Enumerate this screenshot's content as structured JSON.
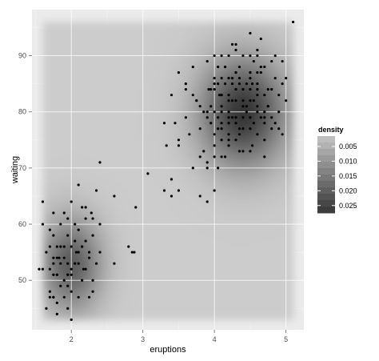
{
  "chart_data": {
    "type": "heatmap",
    "subtype": "2d-density-raster-with-scatter",
    "xlabel": "eruptions",
    "ylabel": "waiting",
    "xlim": [
      1.45,
      5.25
    ],
    "ylim": [
      41.2,
      98.2
    ],
    "x_ticks": [
      2,
      3,
      4,
      5
    ],
    "x_tick_labels": [
      "2",
      "3",
      "4",
      "5"
    ],
    "y_ticks": [
      50,
      60,
      70,
      80,
      90
    ],
    "y_tick_labels": [
      "50",
      "60",
      "70",
      "80",
      "90"
    ],
    "grid": true,
    "density_fill_range": {
      "x": [
        1.6,
        5.1
      ],
      "y": [
        43,
        96
      ]
    },
    "density_modes": [
      {
        "x": 4.4,
        "y": 80,
        "peak": 0.028
      },
      {
        "x": 2.0,
        "y": 53,
        "peak": 0.021
      }
    ],
    "legend": {
      "title": "density",
      "position": "right",
      "labels": [
        "0.005",
        "0.010",
        "0.015",
        "0.020",
        "0.025"
      ],
      "values": [
        0.005,
        0.01,
        0.015,
        0.02,
        0.025
      ]
    },
    "colors": {
      "panel_background": "#ebebeb",
      "grid_major": "#ffffff",
      "grid_minor": "#f5f5f5",
      "density_low": "#cccccc",
      "density_high": "#333333",
      "points": "#000000"
    },
    "points": [
      [
        3.6,
        79
      ],
      [
        1.8,
        54
      ],
      [
        3.33,
        74
      ],
      [
        2.28,
        62
      ],
      [
        4.53,
        85
      ],
      [
        2.88,
        55
      ],
      [
        4.7,
        88
      ],
      [
        3.6,
        85
      ],
      [
        1.95,
        51
      ],
      [
        4.35,
        85
      ],
      [
        1.83,
        54
      ],
      [
        3.92,
        84
      ],
      [
        4.2,
        78
      ],
      [
        1.75,
        47
      ],
      [
        4.7,
        83
      ],
      [
        2.17,
        52
      ],
      [
        1.75,
        62
      ],
      [
        4.8,
        84
      ],
      [
        1.6,
        52
      ],
      [
        4.25,
        79
      ],
      [
        1.8,
        51
      ],
      [
        1.75,
        47
      ],
      [
        3.45,
        78
      ],
      [
        3.07,
        69
      ],
      [
        4.53,
        74
      ],
      [
        4.07,
        83
      ],
      [
        2.07,
        55
      ],
      [
        4.5,
        82
      ],
      [
        3.8,
        81
      ],
      [
        4.5,
        87
      ],
      [
        4.0,
        80
      ],
      [
        3.8,
        77
      ],
      [
        4.2,
        76
      ],
      [
        4.3,
        82
      ],
      [
        4.5,
        86
      ],
      [
        4.6,
        80
      ],
      [
        4.1,
        75
      ],
      [
        4.4,
        82
      ],
      [
        4.1,
        83
      ],
      [
        4.7,
        78
      ],
      [
        4.8,
        79
      ],
      [
        4.1,
        81
      ],
      [
        4.6,
        84
      ],
      [
        4.3,
        79
      ],
      [
        4.4,
        81
      ],
      [
        4.05,
        79
      ],
      [
        4.2,
        86
      ],
      [
        4.65,
        88
      ],
      [
        4.3,
        78
      ],
      [
        4.75,
        81
      ],
      [
        4.25,
        85
      ],
      [
        4.1,
        72
      ],
      [
        4.5,
        79
      ],
      [
        4.45,
        80
      ],
      [
        4.15,
        85
      ],
      [
        3.9,
        79
      ],
      [
        4.9,
        80
      ],
      [
        4.2,
        80
      ],
      [
        4.6,
        76
      ],
      [
        4.4,
        77
      ],
      [
        4.0,
        85
      ],
      [
        4.35,
        76
      ],
      [
        3.7,
        88
      ],
      [
        4.1,
        77
      ],
      [
        4.6,
        87
      ],
      [
        4.3,
        91
      ],
      [
        4.0,
        86
      ],
      [
        4.2,
        79
      ],
      [
        4.4,
        73
      ],
      [
        4.7,
        80
      ],
      [
        4.0,
        72
      ],
      [
        4.1,
        80
      ],
      [
        4.5,
        77
      ],
      [
        4.2,
        82
      ],
      [
        4.0,
        84
      ],
      [
        4.3,
        75
      ],
      [
        4.5,
        84
      ],
      [
        4.8,
        77
      ],
      [
        4.1,
        83
      ],
      [
        3.9,
        80
      ],
      [
        4.6,
        90
      ],
      [
        3.9,
        71
      ],
      [
        4.2,
        74
      ],
      [
        4.4,
        90
      ],
      [
        4.8,
        89
      ],
      [
        3.7,
        83
      ],
      [
        4.3,
        87
      ],
      [
        3.85,
        80
      ],
      [
        4.95,
        76
      ],
      [
        4.7,
        72
      ],
      [
        4.2,
        75
      ],
      [
        4.35,
        88
      ],
      [
        4.6,
        81
      ],
      [
        3.95,
        78
      ],
      [
        4.5,
        90
      ],
      [
        4.05,
        85
      ],
      [
        4.25,
        86
      ],
      [
        4.55,
        78
      ],
      [
        4.15,
        72
      ],
      [
        4.35,
        77
      ],
      [
        4.75,
        81
      ],
      [
        4.45,
        85
      ],
      [
        3.75,
        82
      ],
      [
        4.05,
        88
      ],
      [
        5.1,
        96
      ],
      [
        4.65,
        87
      ],
      [
        4.85,
        90
      ],
      [
        4.95,
        89
      ],
      [
        4.65,
        93
      ],
      [
        4.3,
        92
      ],
      [
        4.55,
        89
      ],
      [
        3.9,
        89
      ],
      [
        4.0,
        90
      ],
      [
        4.5,
        94
      ],
      [
        4.2,
        90
      ],
      [
        4.9,
        83
      ],
      [
        5.0,
        86
      ],
      [
        4.6,
        83
      ],
      [
        4.4,
        84
      ],
      [
        4.1,
        86
      ],
      [
        4.7,
        75
      ],
      [
        4.6,
        85
      ],
      [
        4.25,
        82
      ],
      [
        4.05,
        77
      ],
      [
        3.95,
        84
      ],
      [
        4.85,
        78
      ],
      [
        4.5,
        73
      ],
      [
        4.45,
        81
      ],
      [
        4.15,
        88
      ],
      [
        4.35,
        73
      ],
      [
        3.5,
        87
      ],
      [
        3.4,
        83
      ],
      [
        3.4,
        68
      ],
      [
        3.3,
        78
      ],
      [
        3.6,
        84
      ],
      [
        3.85,
        73
      ],
      [
        3.7,
        70
      ],
      [
        3.5,
        66
      ],
      [
        3.4,
        65
      ],
      [
        3.3,
        66
      ],
      [
        3.5,
        75
      ],
      [
        3.65,
        76
      ],
      [
        3.75,
        82
      ],
      [
        3.8,
        65
      ],
      [
        3.9,
        70
      ],
      [
        4.0,
        66
      ],
      [
        3.9,
        64
      ],
      [
        4.05,
        70
      ],
      [
        3.4,
        68
      ],
      [
        3.5,
        74
      ],
      [
        3.8,
        72
      ],
      [
        4.0,
        74
      ],
      [
        4.1,
        78
      ],
      [
        4.7,
        79
      ],
      [
        4.95,
        85
      ],
      [
        3.95,
        81
      ],
      [
        4.25,
        92
      ],
      [
        4.3,
        84
      ],
      [
        4.1,
        90
      ],
      [
        4.6,
        91
      ],
      [
        4.75,
        84
      ],
      [
        4.85,
        86
      ],
      [
        5.0,
        82
      ],
      [
        4.9,
        77
      ],
      [
        4.35,
        86
      ],
      [
        4.55,
        82
      ],
      [
        4.4,
        79
      ],
      [
        4.2,
        83
      ],
      [
        4.65,
        79
      ],
      [
        4.0,
        76
      ],
      [
        1.9,
        56
      ],
      [
        2.0,
        51
      ],
      [
        1.95,
        58
      ],
      [
        1.8,
        56
      ],
      [
        1.7,
        48
      ],
      [
        2.1,
        55
      ],
      [
        1.85,
        53
      ],
      [
        1.9,
        50
      ],
      [
        2.0,
        56
      ],
      [
        1.8,
        51
      ],
      [
        1.75,
        58
      ],
      [
        2.2,
        57
      ],
      [
        1.65,
        55
      ],
      [
        2.25,
        54
      ],
      [
        1.85,
        49
      ],
      [
        1.95,
        45
      ],
      [
        2.0,
        48
      ],
      [
        1.75,
        51
      ],
      [
        2.3,
        50
      ],
      [
        1.9,
        62
      ],
      [
        2.05,
        60
      ],
      [
        1.85,
        60
      ],
      [
        1.7,
        59
      ],
      [
        2.15,
        50
      ],
      [
        2.2,
        61
      ],
      [
        2.0,
        52
      ],
      [
        1.8,
        46
      ],
      [
        1.95,
        61
      ],
      [
        2.1,
        59
      ],
      [
        2.0,
        64
      ],
      [
        2.15,
        63
      ],
      [
        1.6,
        64
      ],
      [
        2.4,
        71
      ],
      [
        2.35,
        66
      ],
      [
        2.6,
        65
      ],
      [
        2.3,
        58
      ],
      [
        2.4,
        55
      ],
      [
        2.2,
        52
      ],
      [
        1.65,
        45
      ],
      [
        1.8,
        44
      ],
      [
        2.0,
        43
      ],
      [
        1.7,
        47
      ],
      [
        2.25,
        47
      ],
      [
        1.9,
        47
      ],
      [
        1.95,
        53
      ],
      [
        1.75,
        53
      ],
      [
        1.9,
        54
      ],
      [
        2.05,
        53
      ],
      [
        2.1,
        53
      ],
      [
        1.7,
        56
      ],
      [
        2.05,
        57
      ],
      [
        2.35,
        53
      ],
      [
        2.4,
        60
      ],
      [
        2.3,
        61
      ],
      [
        2.2,
        63
      ],
      [
        1.6,
        60
      ],
      [
        2.6,
        53
      ],
      [
        2.8,
        56
      ],
      [
        2.85,
        55
      ],
      [
        2.9,
        63
      ],
      [
        2.1,
        67
      ],
      [
        1.85,
        56
      ],
      [
        1.75,
        54
      ],
      [
        2.15,
        56
      ],
      [
        2.25,
        55
      ],
      [
        1.55,
        52
      ],
      [
        1.95,
        49
      ],
      [
        2.1,
        47
      ],
      [
        2.3,
        48
      ],
      [
        1.7,
        52
      ]
    ]
  }
}
